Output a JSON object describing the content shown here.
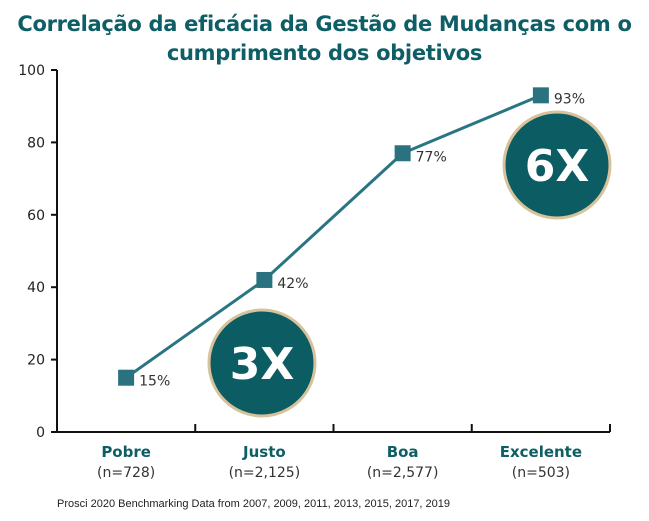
{
  "chart_data": {
    "type": "line",
    "title": "Correlação da eficácia da Gestão de Mudanças com o cumprimento dos objetivos",
    "categories": [
      "Pobre",
      "Justo",
      "Boa",
      "Excelente"
    ],
    "category_sublabels": [
      "(n=728)",
      "(n=2,125)",
      "(n=2,577)",
      "(n=503)"
    ],
    "values": [
      15,
      42,
      77,
      93
    ],
    "data_labels": [
      "15%",
      "42%",
      "77%",
      "93%"
    ],
    "ylim": [
      0,
      100
    ],
    "yticks": [
      0,
      20,
      40,
      60,
      80,
      100
    ],
    "grid": false,
    "annotations": [
      {
        "text": "3X",
        "near": "Justo"
      },
      {
        "text": "6X",
        "near": "Excelente"
      }
    ],
    "source": "Prosci 2020 Benchmarking Data from 2007, 2009, 2011, 2013, 2015, 2017, 2019",
    "colors": {
      "title": "#0e5e66",
      "line": "#2a7583",
      "marker": "#2b7281",
      "badge": "#0b5c63",
      "badge_border": "#d8c29c",
      "category": "#0e5e66"
    }
  }
}
